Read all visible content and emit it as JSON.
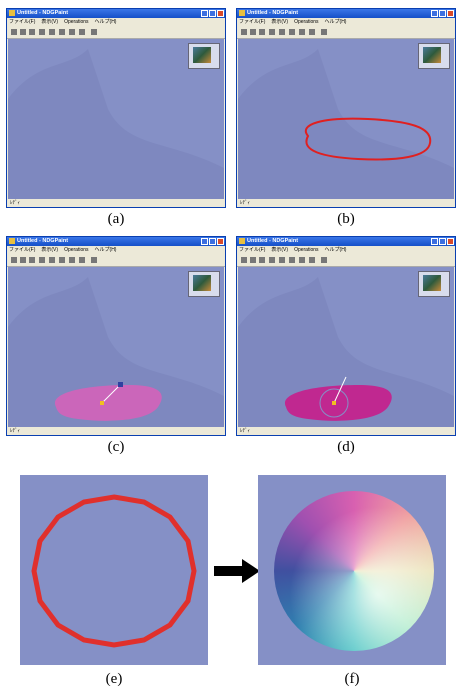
{
  "windows": [
    {
      "title": "Untitled - NDGPaint",
      "menu": [
        "ファイル(F)",
        "表示(V)",
        "Operations",
        "ヘルプ(H)"
      ],
      "status": "ﾚﾃﾞｨ",
      "caption": "(a)"
    },
    {
      "title": "Untitled - NDGPaint",
      "menu": [
        "ファイル(F)",
        "表示(V)",
        "Operations",
        "ヘルプ(H)"
      ],
      "status": "ﾚﾃﾞｨ",
      "caption": "(b)"
    },
    {
      "title": "Untitled - NDGPaint",
      "menu": [
        "ファイル(F)",
        "表示(V)",
        "Operations",
        "ヘルプ(H)"
      ],
      "status": "ﾚﾃﾞｨ",
      "caption": "(c)"
    },
    {
      "title": "Untitled - NDGPaint",
      "menu": [
        "ファイル(F)",
        "表示(V)",
        "Operations",
        "ヘルプ(H)"
      ],
      "status": "ﾚﾃﾞｨ",
      "caption": "(d)"
    }
  ],
  "panels": [
    {
      "caption": "(e)"
    },
    {
      "caption": "(f)"
    }
  ]
}
